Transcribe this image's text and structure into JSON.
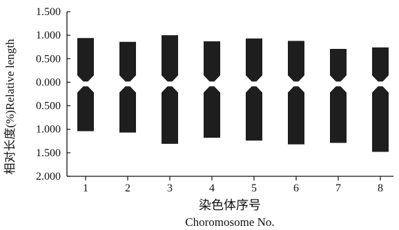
{
  "chart_data": {
    "type": "ideogram",
    "ylabel": "相对长度(%)Relative length",
    "xlabel_cn": "染色体序号",
    "xlabel_en": "Choromosome No.",
    "y_tick_labels": [
      "1.500",
      "1.000",
      "0.500",
      "0.000",
      "0.500",
      "1.000",
      "1.500",
      "2.000"
    ],
    "y_tick_values": [
      1.5,
      1.0,
      0.5,
      0.0,
      -0.5,
      -1.0,
      -1.5,
      -2.0
    ],
    "ylim": [
      -2.0,
      1.5
    ],
    "categories": [
      "1",
      "2",
      "3",
      "4",
      "5",
      "6",
      "7",
      "8"
    ],
    "series": [
      {
        "short_arm": [
          0.94,
          0.86,
          1.0,
          0.87,
          0.93,
          0.88,
          0.71,
          0.74
        ],
        "long_arm": [
          1.04,
          1.07,
          1.31,
          1.18,
          1.24,
          1.32,
          1.29,
          1.48
        ]
      }
    ],
    "bar_color": "#1e1e1e",
    "grid": false
  }
}
